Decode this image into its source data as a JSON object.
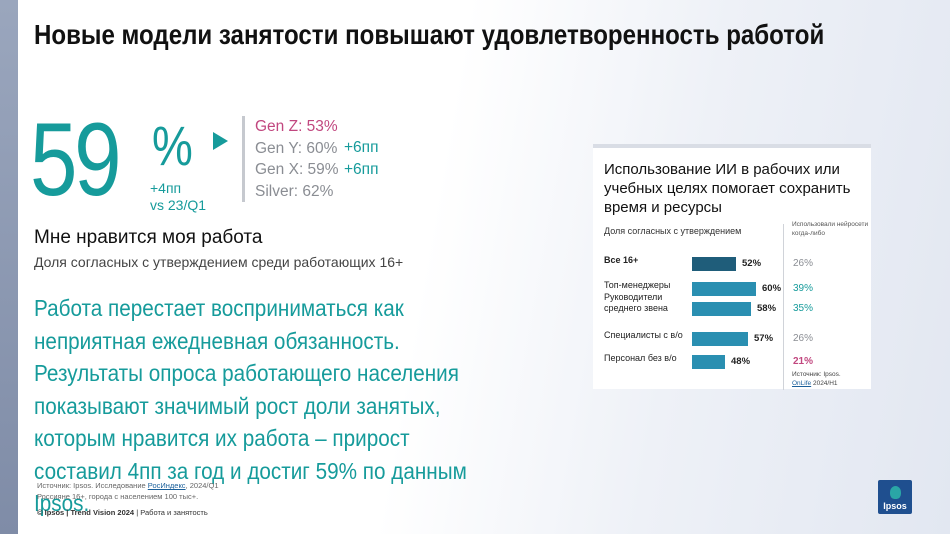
{
  "title": "Новые модели занятости повышают удовлетворенность работой",
  "kpi": {
    "value": "59",
    "unit": "%",
    "delta": "+4пп",
    "compare": "vs 23/Q1"
  },
  "generations": [
    {
      "label": "Gen Z: 53%",
      "delta": ""
    },
    {
      "label": "Gen Y: 60%",
      "delta": "+6пп"
    },
    {
      "label": "Gen X: 59%",
      "delta": "+6пп"
    },
    {
      "label": "Silver: 62%",
      "delta": ""
    }
  ],
  "subhead": "Мне нравится моя работа",
  "subnote": "Доля согласных с утверждением среди работающих 16+",
  "body_text": "Работа перестает восприниматься как неприятная ежедневная обязанность. Результаты опроса работающего населения показывают значимый рост доли занятых, которым нравится их работа – прирост составил 4пп за год и достиг 59% по данным Ipsos.",
  "source_left": {
    "prefix": "Источник: Ipsos. Исследование ",
    "link": "РосИндекс",
    "suffix": ", 2024/Q1",
    "line2": "Россияне 16+, города с населением 100 тыс+."
  },
  "footer": {
    "brand": "© Ipsos | Trend Vision 2024",
    "section": " | Работа и занятость"
  },
  "panel": {
    "title": "Использование ИИ в рабочих или учебных целях помогает сохранить время и ресурсы",
    "subtitle": "Доля согласных с утверждением",
    "col_head": "Использовали нейросети когда-либо",
    "source_prefix": "Источник: Ipsos.",
    "source_link": "OnLife",
    "source_suffix": " 2024/H1"
  },
  "colors": {
    "accent": "#169b9b",
    "highlight": "#c1477f",
    "muted": "#8a8d93",
    "bar_dark": "#1f5d7a",
    "bar": "#2a8fb1"
  },
  "chart_data": {
    "type": "bar",
    "orientation": "horizontal",
    "title": "Использование ИИ в рабочих или учебных целях помогает сохранить время и ресурсы",
    "subtitle": "Доля согласных с утверждением",
    "categories": [
      "Все 16+",
      "Топ-менеджеры",
      "Руководители среднего звена",
      "Специалисты с в/о",
      "Персонал без в/о"
    ],
    "values": [
      52,
      60,
      58,
      57,
      48
    ],
    "value_labels": [
      "52%",
      "60%",
      "58%",
      "57%",
      "48%"
    ],
    "secondary_column": {
      "name": "Использовали нейросети когда-либо",
      "values": [
        26,
        39,
        35,
        26,
        21
      ],
      "labels": [
        "26%",
        "39%",
        "35%",
        "26%",
        "21%"
      ],
      "styles": [
        "grey",
        "accent",
        "accent",
        "grey",
        "red"
      ]
    },
    "xlim": [
      0,
      100
    ],
    "grid": false,
    "legend": "none"
  }
}
